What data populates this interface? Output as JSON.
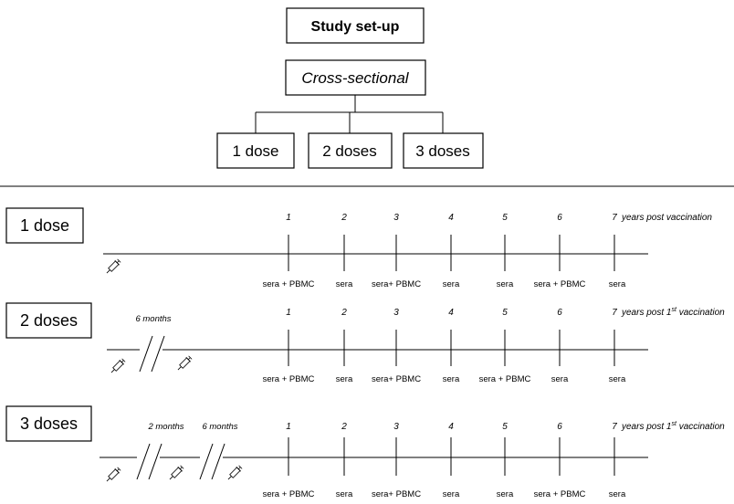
{
  "setup": {
    "title": "Study set-up",
    "design": "Cross-sectional",
    "groups": [
      "1 dose",
      "2 doses",
      "3 doses"
    ]
  },
  "timelines": [
    {
      "label": "1 dose",
      "years": [
        "1",
        "2",
        "3",
        "4",
        "5",
        "6",
        "7"
      ],
      "end_label": "years post vaccination",
      "end_sup": "",
      "end_suffix": "",
      "samples": [
        "sera + PBMC",
        "sera",
        "sera+ PBMC",
        "sera",
        "sera",
        "sera + PBMC",
        "sera"
      ],
      "intervals": []
    },
    {
      "label": "2 doses",
      "years": [
        "1",
        "2",
        "3",
        "4",
        "5",
        "6",
        "7"
      ],
      "end_label": "years post 1",
      "end_sup": "st",
      "end_suffix": " vaccination",
      "samples": [
        "sera + PBMC",
        "sera",
        "sera+ PBMC",
        "sera",
        "sera + PBMC",
        "sera",
        "sera"
      ],
      "intervals": [
        "6 months"
      ]
    },
    {
      "label": "3 doses",
      "years": [
        "1",
        "2",
        "3",
        "4",
        "5",
        "6",
        "7"
      ],
      "end_label": "years post 1",
      "end_sup": "st",
      "end_suffix": " vaccination",
      "samples": [
        "sera + PBMC",
        "sera",
        "sera+ PBMC",
        "sera",
        "sera",
        "sera + PBMC",
        "sera"
      ],
      "intervals": [
        "2 months",
        "6 months"
      ]
    }
  ],
  "icons": {
    "vaccination": "syringe-icon"
  }
}
